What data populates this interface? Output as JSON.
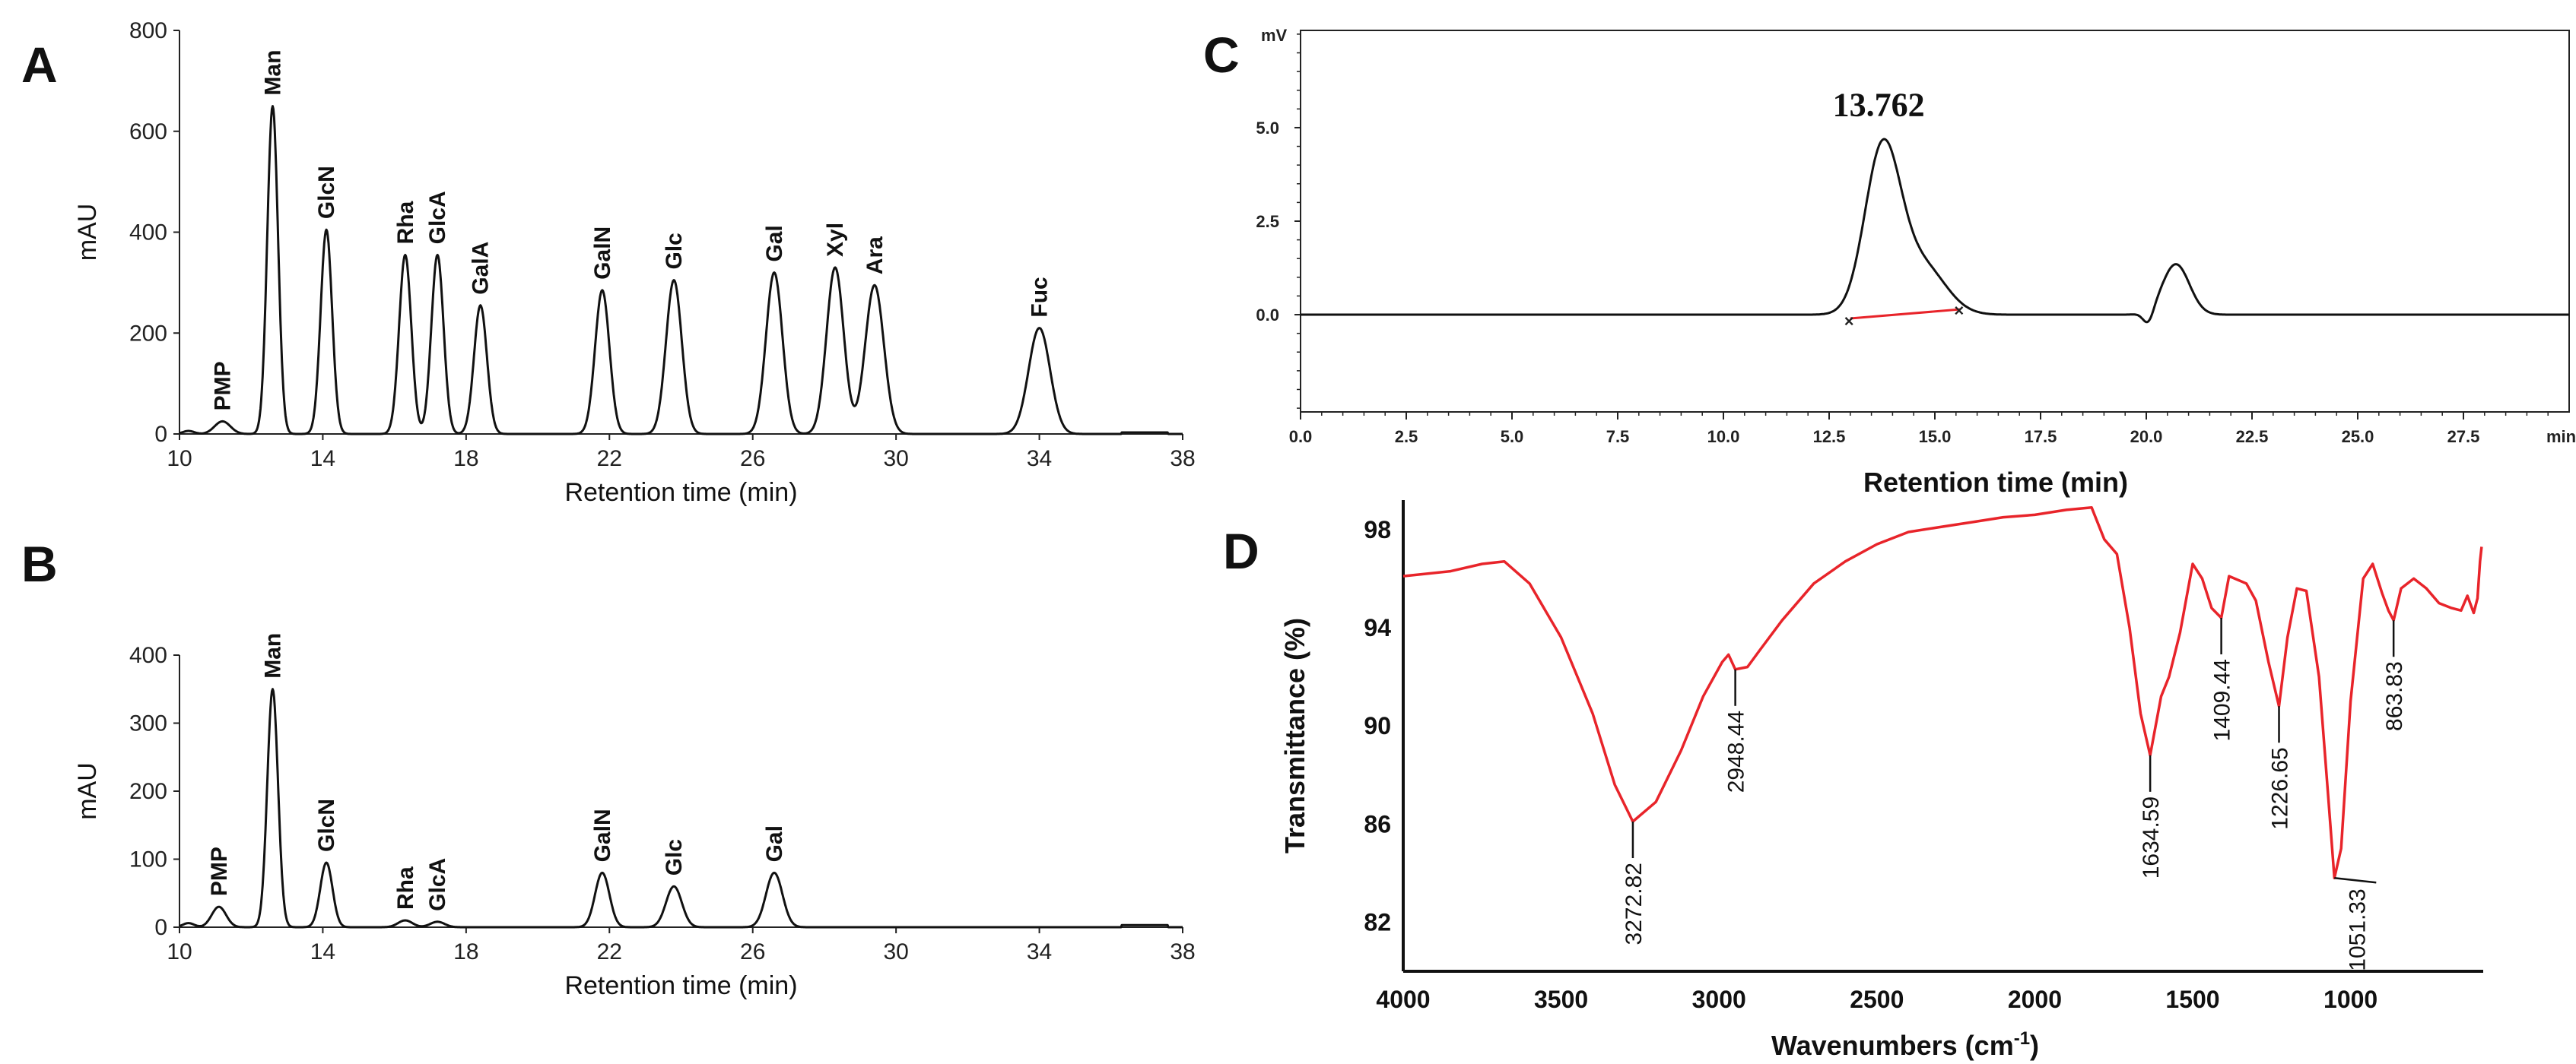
{
  "chart_data": [
    {
      "panel": "A",
      "type": "line",
      "xlabel": "Retention time (min)",
      "ylabel": "mAU",
      "xlim": [
        10,
        38
      ],
      "ylim": [
        0,
        800
      ],
      "xticks": [
        "10",
        "14",
        "18",
        "22",
        "26",
        "30",
        "34",
        "38"
      ],
      "yticks": [
        "0",
        "200",
        "400",
        "600",
        "800"
      ],
      "peaks": [
        {
          "label": "PMP",
          "x": 11.2,
          "y": 25,
          "w": 0.22
        },
        {
          "label": "Man",
          "x": 12.6,
          "y": 650,
          "w": 0.15
        },
        {
          "label": "GlcN",
          "x": 14.1,
          "y": 405,
          "w": 0.16
        },
        {
          "label": "Rha",
          "x": 16.3,
          "y": 355,
          "w": 0.17
        },
        {
          "label": "GlcA",
          "x": 17.2,
          "y": 355,
          "w": 0.17
        },
        {
          "label": "GalA",
          "x": 18.4,
          "y": 255,
          "w": 0.18
        },
        {
          "label": "GalN",
          "x": 21.8,
          "y": 285,
          "w": 0.2
        },
        {
          "label": "Glc",
          "x": 23.8,
          "y": 305,
          "w": 0.22
        },
        {
          "label": "Gal",
          "x": 26.6,
          "y": 320,
          "w": 0.23
        },
        {
          "label": "Xyl",
          "x": 28.3,
          "y": 330,
          "w": 0.24
        },
        {
          "label": "Ara",
          "x": 29.4,
          "y": 295,
          "w": 0.26
        },
        {
          "label": "Fuc",
          "x": 34.0,
          "y": 210,
          "w": 0.3
        }
      ]
    },
    {
      "panel": "B",
      "type": "line",
      "xlabel": "Retention time (min)",
      "ylabel": "mAU",
      "xlim": [
        10,
        38
      ],
      "ylim": [
        0,
        400
      ],
      "xticks": [
        "10",
        "14",
        "18",
        "22",
        "26",
        "30",
        "34",
        "38"
      ],
      "yticks": [
        "0",
        "100",
        "200",
        "300",
        "400"
      ],
      "peaks": [
        {
          "label": "PMP",
          "x": 11.1,
          "y": 30,
          "w": 0.2
        },
        {
          "label": "Man",
          "x": 12.6,
          "y": 350,
          "w": 0.15
        },
        {
          "label": "GlcN",
          "x": 14.1,
          "y": 95,
          "w": 0.17
        },
        {
          "label": "Rha",
          "x": 16.3,
          "y": 10,
          "w": 0.2
        },
        {
          "label": "GlcA",
          "x": 17.2,
          "y": 8,
          "w": 0.2
        },
        {
          "label": "GalN",
          "x": 21.8,
          "y": 80,
          "w": 0.2
        },
        {
          "label": "Glc",
          "x": 23.8,
          "y": 60,
          "w": 0.22
        },
        {
          "label": "Gal",
          "x": 26.6,
          "y": 80,
          "w": 0.23
        }
      ]
    },
    {
      "panel": "C",
      "type": "line",
      "xlabel": "Retention time  (min)",
      "ylabel": "mV",
      "xunit": "min",
      "xlim": [
        0,
        30
      ],
      "ylim": [
        -2.6,
        7.6
      ],
      "xticks": [
        "0.0",
        "2.5",
        "5.0",
        "7.5",
        "10.0",
        "12.5",
        "15.0",
        "17.5",
        "20.0",
        "22.5",
        "25.0",
        "27.5"
      ],
      "yticks": [
        {
          "v": 5.0,
          "t": "5.0"
        },
        {
          "v": 2.5,
          "t": "2.5"
        },
        {
          "v": 0.0,
          "t": "0.0"
        }
      ],
      "main_peak": {
        "label": "13.762",
        "x": 13.762,
        "y": 4.7
      },
      "secondary_peak": {
        "x": 20.7,
        "y": 1.35
      },
      "baseline_range": [
        13.0,
        15.6
      ]
    },
    {
      "panel": "D",
      "type": "line",
      "xlabel": "Wavenumbers (cm",
      "xlabel_sup": "-1",
      "xlabel_end": ")",
      "ylabel": "Transmittance (%)",
      "xlim": [
        4000,
        580
      ],
      "ylim": [
        80,
        99.2
      ],
      "xticks": [
        "4000",
        "3500",
        "3000",
        "2500",
        "2000",
        "1500",
        "1000"
      ],
      "yticks": [
        "82",
        "86",
        "90",
        "94",
        "98"
      ],
      "line_color": "#e8242a",
      "spectrum": [
        [
          4000,
          96.1
        ],
        [
          3850,
          96.3
        ],
        [
          3750,
          96.6
        ],
        [
          3680,
          96.7
        ],
        [
          3600,
          95.8
        ],
        [
          3500,
          93.6
        ],
        [
          3400,
          90.5
        ],
        [
          3330,
          87.6
        ],
        [
          3272.82,
          86.1
        ],
        [
          3200,
          86.9
        ],
        [
          3120,
          89.0
        ],
        [
          3050,
          91.2
        ],
        [
          2990,
          92.6
        ],
        [
          2970,
          92.9
        ],
        [
          2948.44,
          92.3
        ],
        [
          2910,
          92.4
        ],
        [
          2870,
          93.1
        ],
        [
          2800,
          94.3
        ],
        [
          2700,
          95.8
        ],
        [
          2600,
          96.7
        ],
        [
          2500,
          97.4
        ],
        [
          2400,
          97.9
        ],
        [
          2300,
          98.1
        ],
        [
          2200,
          98.3
        ],
        [
          2100,
          98.5
        ],
        [
          2000,
          98.6
        ],
        [
          1900,
          98.8
        ],
        [
          1820,
          98.9
        ],
        [
          1780,
          97.6
        ],
        [
          1740,
          97.0
        ],
        [
          1700,
          94.0
        ],
        [
          1665,
          90.5
        ],
        [
          1634.59,
          88.8
        ],
        [
          1600,
          91.2
        ],
        [
          1575,
          92.0
        ],
        [
          1540,
          93.8
        ],
        [
          1500,
          96.6
        ],
        [
          1470,
          96.0
        ],
        [
          1440,
          94.8
        ],
        [
          1409.44,
          94.4
        ],
        [
          1385,
          96.1
        ],
        [
          1330,
          95.8
        ],
        [
          1300,
          95.1
        ],
        [
          1260,
          92.6
        ],
        [
          1226.65,
          90.8
        ],
        [
          1200,
          93.6
        ],
        [
          1170,
          95.6
        ],
        [
          1140,
          95.5
        ],
        [
          1100,
          92.0
        ],
        [
          1070,
          87.0
        ],
        [
          1051.33,
          83.8
        ],
        [
          1030,
          85.0
        ],
        [
          1000,
          91.0
        ],
        [
          960,
          96.0
        ],
        [
          930,
          96.6
        ],
        [
          900,
          95.4
        ],
        [
          880,
          94.7
        ],
        [
          863.83,
          94.3
        ],
        [
          840,
          95.6
        ],
        [
          800,
          96.0
        ],
        [
          760,
          95.6
        ],
        [
          720,
          95.0
        ],
        [
          680,
          94.8
        ],
        [
          650,
          94.7
        ],
        [
          630,
          95.3
        ],
        [
          610,
          94.6
        ],
        [
          598,
          95.2
        ],
        [
          590,
          96.7
        ],
        [
          585,
          97.3
        ]
      ],
      "annotations": [
        "3272.82",
        "2948.44",
        "1634.59",
        "1409.44",
        "1226.65",
        "1051.33",
        "863.83"
      ]
    }
  ]
}
